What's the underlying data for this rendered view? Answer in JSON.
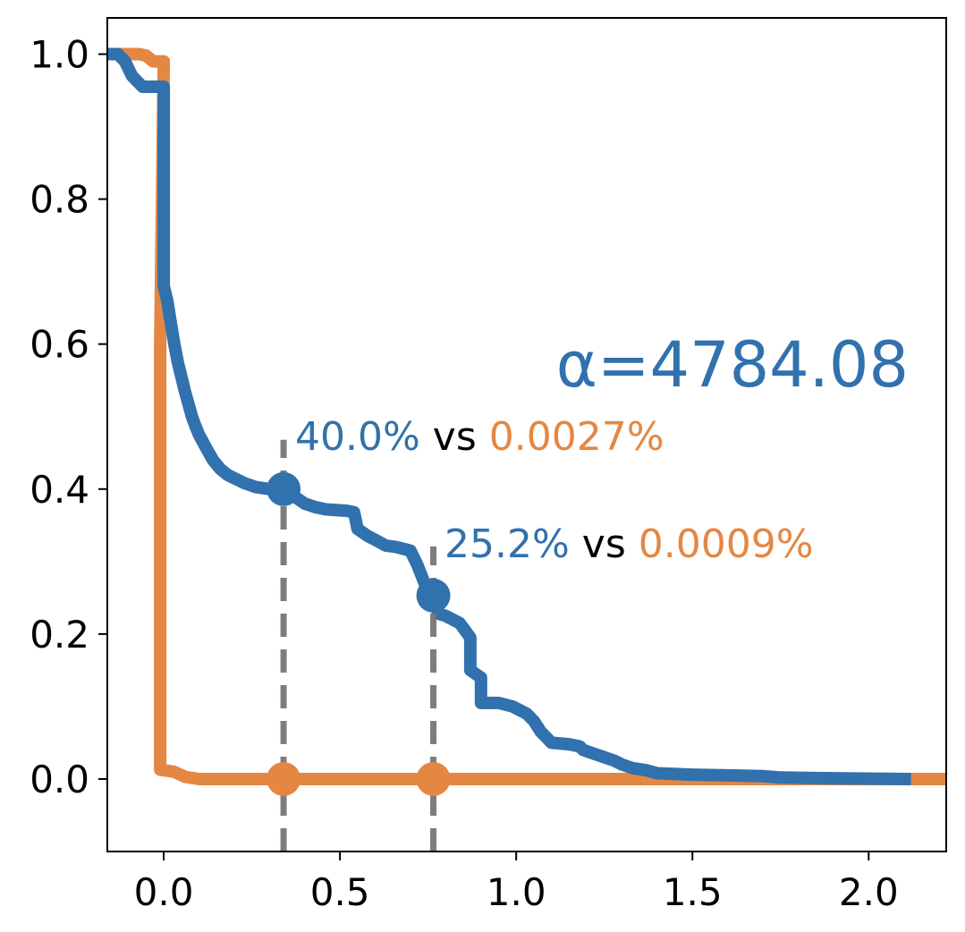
{
  "chart_data": {
    "type": "line",
    "title": "",
    "xlabel": "",
    "ylabel": "",
    "xlim": [
      -0.16,
      2.22
    ],
    "ylim": [
      -0.1,
      1.05
    ],
    "x_ticks": [
      "0.0",
      "0.5",
      "1.0",
      "1.5",
      "2.0"
    ],
    "x_tick_values": [
      0.0,
      0.5,
      1.0,
      1.5,
      2.0
    ],
    "y_ticks": [
      "0.0",
      "0.2",
      "0.4",
      "0.6",
      "0.8",
      "1.0"
    ],
    "y_tick_values": [
      0.0,
      0.2,
      0.4,
      0.6,
      0.8,
      1.0
    ],
    "grid": false,
    "legend": "none",
    "colors": {
      "blue": "#3171ad",
      "orange": "#e48743",
      "vline": "#777777"
    },
    "series": [
      {
        "color": "blue",
        "points": [
          [
            -0.16,
            1.0
          ],
          [
            -0.13,
            1.0
          ],
          [
            -0.11,
            0.99
          ],
          [
            -0.09,
            0.97
          ],
          [
            -0.08,
            0.965
          ],
          [
            -0.06,
            0.955
          ],
          [
            -0.02,
            0.955
          ],
          [
            0.0,
            0.955
          ],
          [
            0.0,
            0.68
          ],
          [
            0.01,
            0.66
          ],
          [
            0.02,
            0.63
          ],
          [
            0.03,
            0.6
          ],
          [
            0.04,
            0.575
          ],
          [
            0.05,
            0.555
          ],
          [
            0.06,
            0.535
          ],
          [
            0.07,
            0.518
          ],
          [
            0.08,
            0.5
          ],
          [
            0.09,
            0.487
          ],
          [
            0.1,
            0.475
          ],
          [
            0.12,
            0.457
          ],
          [
            0.14,
            0.44
          ],
          [
            0.16,
            0.428
          ],
          [
            0.18,
            0.42
          ],
          [
            0.2,
            0.415
          ],
          [
            0.23,
            0.408
          ],
          [
            0.26,
            0.403
          ],
          [
            0.3,
            0.4
          ],
          [
            0.34,
            0.4
          ],
          [
            0.37,
            0.39
          ],
          [
            0.4,
            0.38
          ],
          [
            0.43,
            0.375
          ],
          [
            0.46,
            0.372
          ],
          [
            0.52,
            0.37
          ],
          [
            0.54,
            0.368
          ],
          [
            0.55,
            0.345
          ],
          [
            0.58,
            0.335
          ],
          [
            0.6,
            0.33
          ],
          [
            0.63,
            0.322
          ],
          [
            0.66,
            0.32
          ],
          [
            0.7,
            0.315
          ],
          [
            0.72,
            0.295
          ],
          [
            0.74,
            0.27
          ],
          [
            0.765,
            0.245
          ],
          [
            0.78,
            0.228
          ],
          [
            0.8,
            0.225
          ],
          [
            0.84,
            0.215
          ],
          [
            0.87,
            0.195
          ],
          [
            0.87,
            0.15
          ],
          [
            0.9,
            0.14
          ],
          [
            0.9,
            0.105
          ],
          [
            0.95,
            0.105
          ],
          [
            0.99,
            0.1
          ],
          [
            1.03,
            0.09
          ],
          [
            1.05,
            0.08
          ],
          [
            1.07,
            0.065
          ],
          [
            1.08,
            0.06
          ],
          [
            1.1,
            0.05
          ],
          [
            1.15,
            0.048
          ],
          [
            1.18,
            0.045
          ],
          [
            1.19,
            0.04
          ],
          [
            1.22,
            0.035
          ],
          [
            1.25,
            0.03
          ],
          [
            1.28,
            0.025
          ],
          [
            1.3,
            0.02
          ],
          [
            1.33,
            0.015
          ],
          [
            1.37,
            0.012
          ],
          [
            1.4,
            0.008
          ],
          [
            1.5,
            0.006
          ],
          [
            1.6,
            0.005
          ],
          [
            1.7,
            0.004
          ],
          [
            1.75,
            0.002
          ],
          [
            1.9,
            0.001
          ],
          [
            2.12,
            0.0
          ]
        ]
      },
      {
        "color": "orange",
        "points": [
          [
            -0.16,
            1.0
          ],
          [
            -0.07,
            1.0
          ],
          [
            -0.05,
            0.998
          ],
          [
            -0.03,
            0.99
          ],
          [
            0.0,
            0.99
          ],
          [
            -0.01,
            0.6
          ],
          [
            -0.01,
            0.013
          ],
          [
            0.03,
            0.01
          ],
          [
            0.06,
            0.003
          ],
          [
            0.1,
            0.0
          ],
          [
            0.5,
            0.0
          ],
          [
            1.0,
            0.0
          ],
          [
            1.5,
            0.0
          ],
          [
            2.0,
            0.0
          ],
          [
            2.22,
            0.0
          ]
        ]
      }
    ],
    "thresholds": [
      {
        "x": 0.34,
        "blue_y": 0.4,
        "orange_y": 0.0,
        "label_blue": "40.0%",
        "label_vs": "vs",
        "label_orange": "0.0027%"
      },
      {
        "x": 0.765,
        "blue_y": 0.253,
        "orange_y": 0.0,
        "label_blue": "25.2%",
        "label_vs": "vs",
        "label_orange": "0.0009%"
      }
    ],
    "annotation": {
      "text": "α=4784.08",
      "color": "blue"
    }
  }
}
